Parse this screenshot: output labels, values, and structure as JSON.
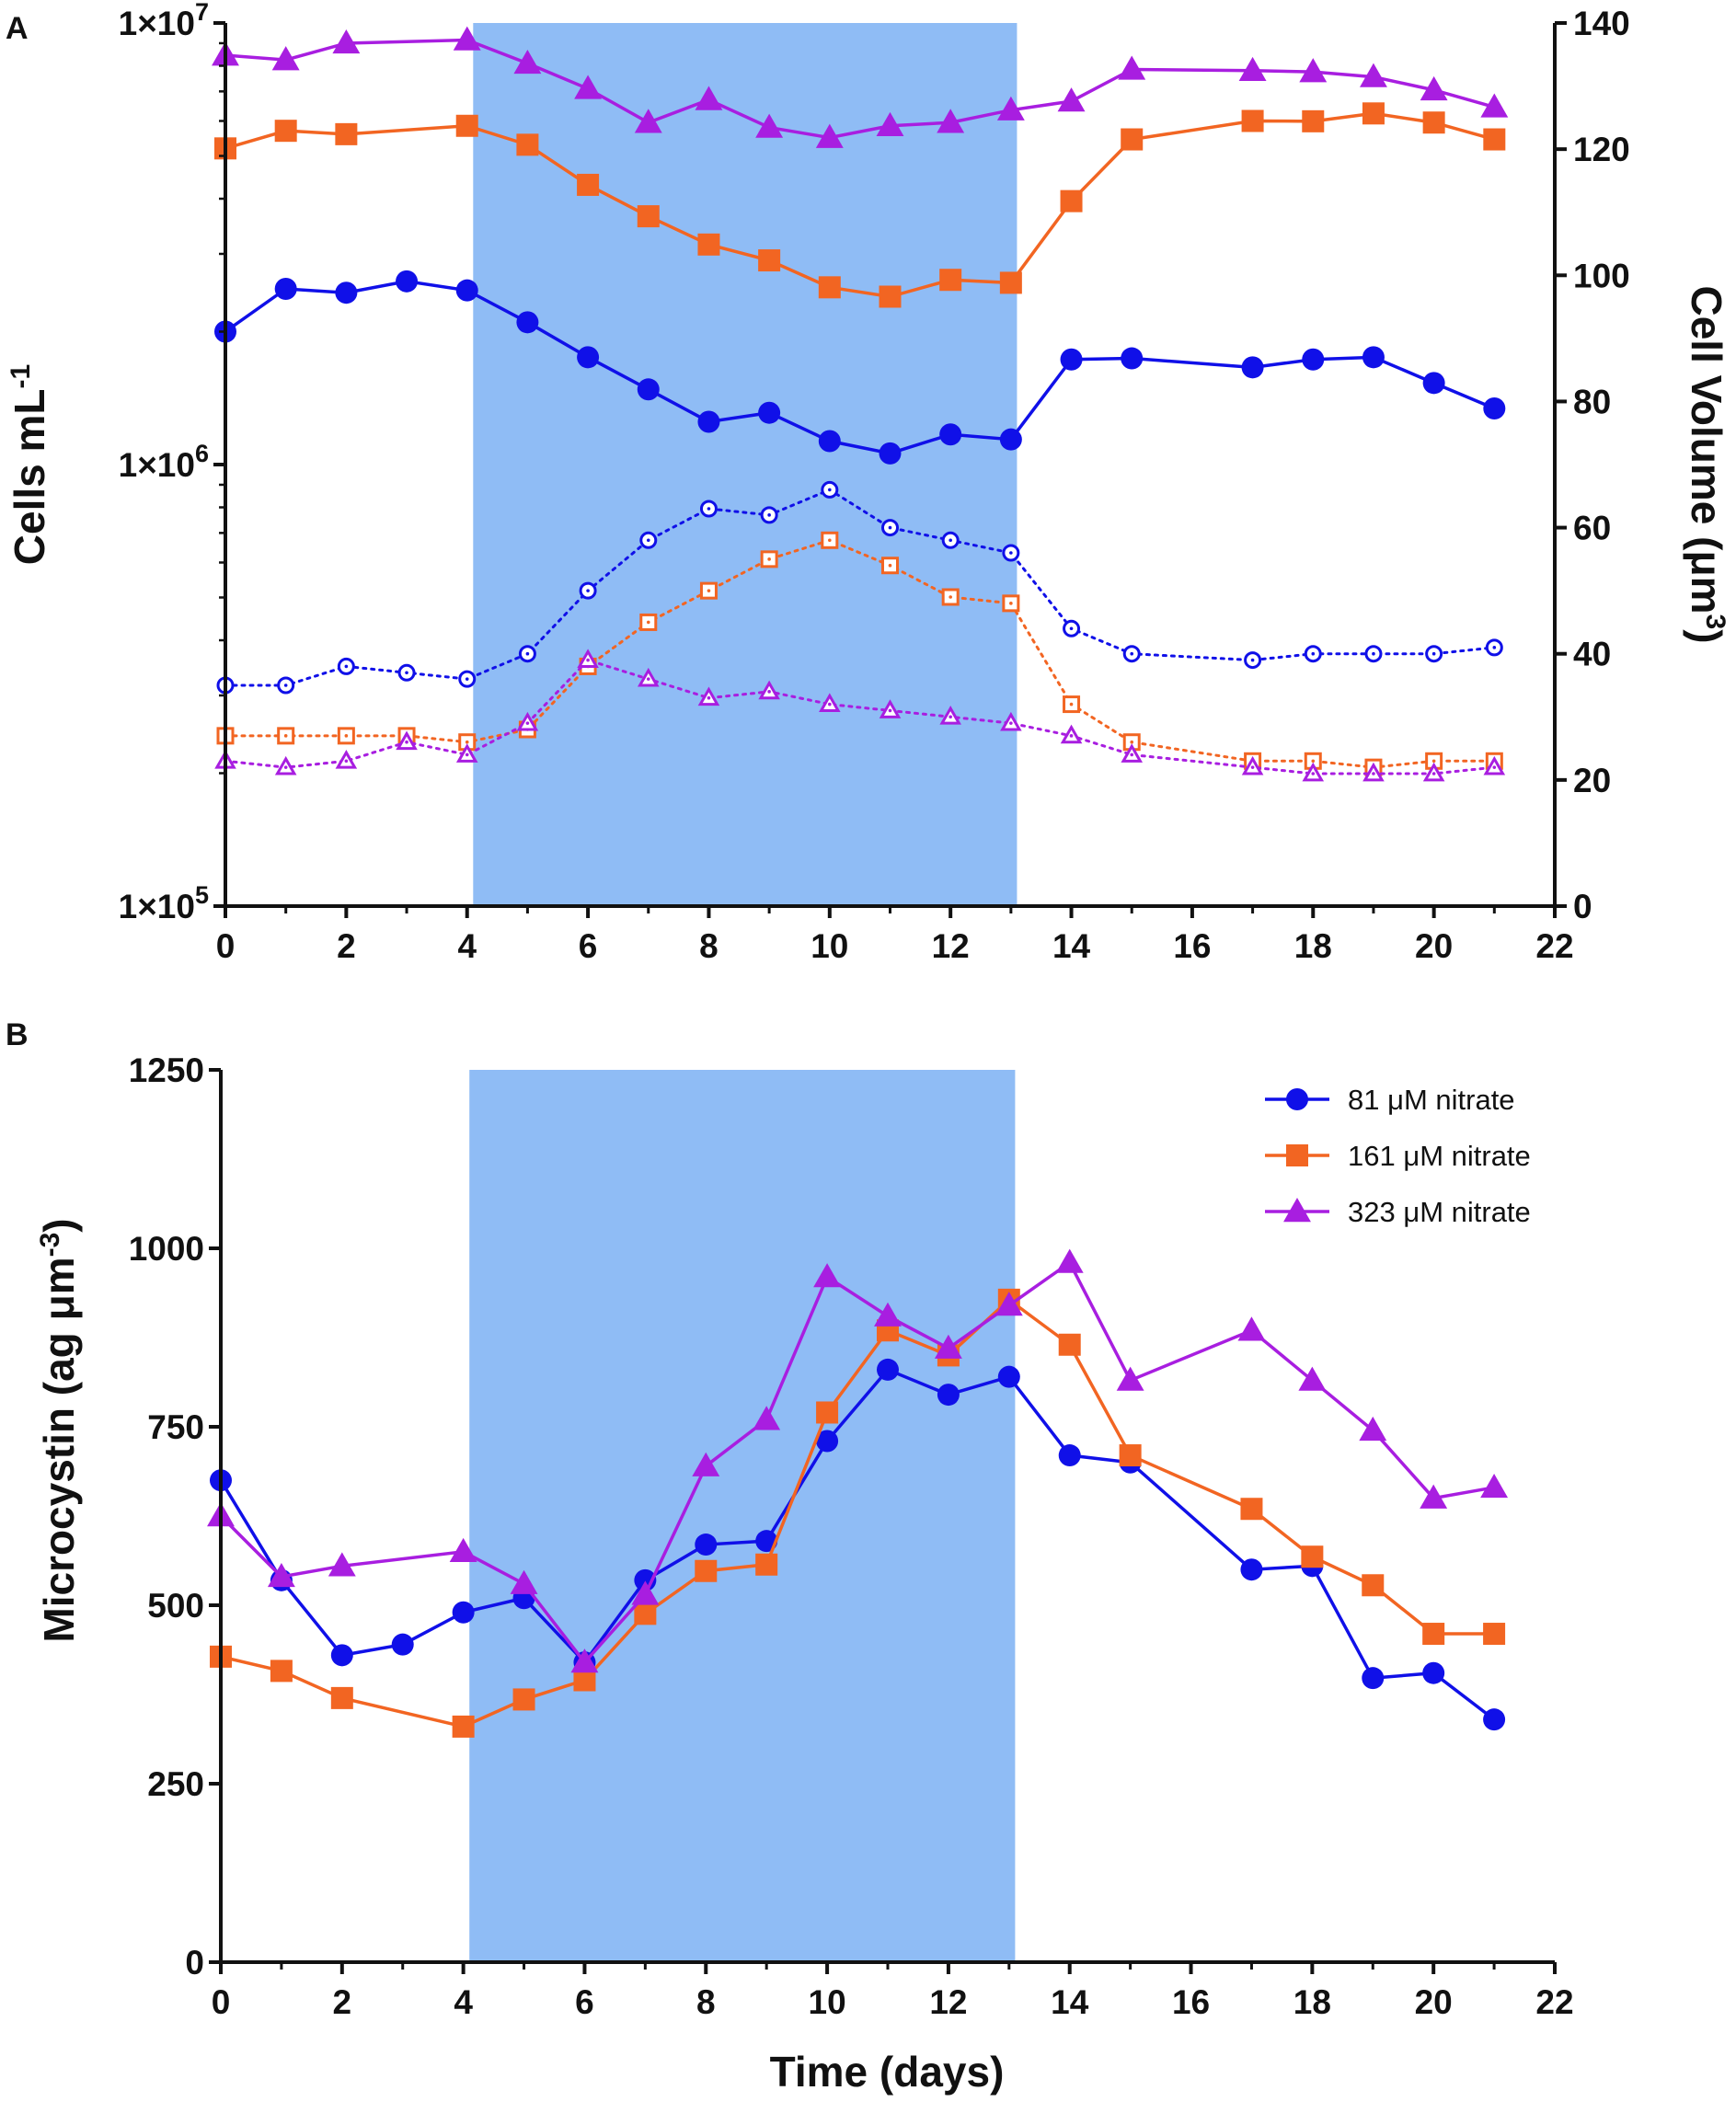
{
  "colors": {
    "series_81": "#1010e8",
    "series_161": "#f26522",
    "series_323": "#a81ee0",
    "shade": "#8fbcf5",
    "axis": "#111111"
  },
  "chart_data": [
    {
      "panel": "A",
      "type": "line",
      "xlabel": "",
      "x_ticks": [
        "0",
        "2",
        "4",
        "6",
        "8",
        "10",
        "12",
        "14",
        "16",
        "18",
        "20",
        "22"
      ],
      "xlim": [
        0,
        22
      ],
      "shaded_region": [
        4.1,
        13.1
      ],
      "left_axis": {
        "ylabel_main": "Cells mL",
        "ylabel_sup": "-1",
        "scale": "log",
        "ylim": [
          100000,
          10000000
        ],
        "ticks": [
          {
            "value": 100000,
            "base": "1×10",
            "exp": "5"
          },
          {
            "value": 1000000,
            "base": "1×10",
            "exp": "6"
          },
          {
            "value": 10000000,
            "base": "1×10",
            "exp": "7"
          }
        ]
      },
      "right_axis": {
        "ylabel_main": "Cell Volume (μm",
        "ylabel_sup": "3",
        "ylabel_end": ")",
        "scale": "linear",
        "ylim": [
          0,
          140
        ],
        "ticks": [
          "0",
          "20",
          "40",
          "60",
          "80",
          "100",
          "120",
          "140"
        ]
      },
      "series": [
        {
          "name": "81 μM nitrate",
          "measure": "cells",
          "axis": "left",
          "color": "series_81",
          "marker": "circle",
          "filled": true,
          "dotted": false,
          "x": [
            0,
            1,
            2,
            3,
            4,
            5,
            6,
            7,
            8,
            9,
            10,
            11,
            12,
            13,
            14,
            15,
            17,
            18,
            19,
            20,
            21
          ],
          "y": [
            2000000,
            2500000,
            2450000,
            2600000,
            2480000,
            2100000,
            1750000,
            1480000,
            1250000,
            1310000,
            1130000,
            1060000,
            1170000,
            1140000,
            1730000,
            1740000,
            1660000,
            1730000,
            1750000,
            1530000,
            1340000
          ]
        },
        {
          "name": "161 μM nitrate",
          "measure": "cells",
          "axis": "left",
          "color": "series_161",
          "marker": "square",
          "filled": true,
          "dotted": false,
          "x": [
            0,
            1,
            2,
            4,
            5,
            6,
            7,
            8,
            9,
            10,
            11,
            12,
            13,
            14,
            15,
            17,
            18,
            19,
            20,
            21
          ],
          "y": [
            5200000,
            5700000,
            5600000,
            5850000,
            5300000,
            4300000,
            3650000,
            3150000,
            2900000,
            2520000,
            2400000,
            2620000,
            2580000,
            3950000,
            5450000,
            6000000,
            5990000,
            6240000,
            5950000,
            5450000
          ]
        },
        {
          "name": "323 μM nitrate",
          "measure": "cells",
          "axis": "left",
          "color": "series_323",
          "marker": "triangle",
          "filled": true,
          "dotted": false,
          "x": [
            0,
            1,
            2,
            4,
            5,
            6,
            7,
            8,
            9,
            10,
            11,
            12,
            13,
            14,
            15,
            17,
            18,
            19,
            20,
            21
          ],
          "y": [
            8450000,
            8250000,
            9000000,
            9150000,
            8100000,
            7100000,
            5950000,
            6700000,
            5800000,
            5500000,
            5850000,
            5950000,
            6350000,
            6650000,
            7850000,
            7800000,
            7750000,
            7550000,
            7050000,
            6450000
          ]
        },
        {
          "name": "81 μM nitrate",
          "measure": "volume",
          "axis": "right",
          "color": "series_81",
          "marker": "circle",
          "filled": false,
          "dotted": true,
          "x": [
            0,
            1,
            2,
            3,
            4,
            5,
            6,
            7,
            8,
            9,
            10,
            11,
            12,
            13,
            14,
            15,
            17,
            18,
            19,
            20,
            21
          ],
          "y": [
            35,
            35,
            38,
            37,
            36,
            40,
            50,
            58,
            63,
            62,
            66,
            60,
            58,
            56,
            44,
            40,
            39,
            40,
            40,
            40,
            41
          ]
        },
        {
          "name": "161 μM nitrate",
          "measure": "volume",
          "axis": "right",
          "color": "series_161",
          "marker": "square",
          "filled": false,
          "dotted": true,
          "x": [
            0,
            1,
            2,
            3,
            4,
            5,
            6,
            7,
            8,
            9,
            10,
            11,
            12,
            13,
            14,
            15,
            17,
            18,
            19,
            20,
            21
          ],
          "y": [
            27,
            27,
            27,
            27,
            26,
            28,
            38,
            45,
            50,
            55,
            58,
            54,
            49,
            48,
            32,
            26,
            23,
            23,
            22,
            23,
            23
          ]
        },
        {
          "name": "323 μM nitrate",
          "measure": "volume",
          "axis": "right",
          "color": "series_323",
          "marker": "triangle",
          "filled": false,
          "dotted": true,
          "x": [
            0,
            1,
            2,
            3,
            4,
            5,
            6,
            7,
            8,
            9,
            10,
            11,
            12,
            13,
            14,
            15,
            17,
            18,
            19,
            20,
            21
          ],
          "y": [
            23,
            22,
            23,
            26,
            24,
            29,
            39,
            36,
            33,
            34,
            32,
            31,
            30,
            29,
            27,
            24,
            22,
            21,
            21,
            21,
            22
          ]
        }
      ]
    },
    {
      "panel": "B",
      "type": "line",
      "xlabel": "Time (days)",
      "x_ticks": [
        "0",
        "2",
        "4",
        "6",
        "8",
        "10",
        "12",
        "14",
        "16",
        "18",
        "20",
        "22"
      ],
      "xlim": [
        0,
        22
      ],
      "shaded_region": [
        4.1,
        13.1
      ],
      "left_axis": {
        "ylabel_main": "Microcystin (ag μm",
        "ylabel_sup": "-3",
        "ylabel_end": ")",
        "scale": "linear",
        "ylim": [
          0,
          1250
        ],
        "ticks": [
          "0",
          "250",
          "500",
          "750",
          "1000",
          "1250"
        ]
      },
      "legend_position": "top-right",
      "legend": [
        "81 μM nitrate",
        "161 μM nitrate",
        "323 μM nitrate"
      ],
      "series": [
        {
          "name": "81 μM nitrate",
          "color": "series_81",
          "marker": "circle",
          "filled": true,
          "x": [
            0,
            1,
            2,
            3,
            4,
            5,
            6,
            7,
            8,
            9,
            10,
            11,
            12,
            13,
            14,
            15,
            17,
            18,
            19,
            20,
            21
          ],
          "y": [
            675,
            535,
            430,
            445,
            490,
            510,
            420,
            535,
            585,
            590,
            730,
            830,
            795,
            820,
            710,
            700,
            550,
            555,
            398,
            405,
            340
          ]
        },
        {
          "name": "161 μM nitrate",
          "color": "series_161",
          "marker": "square",
          "filled": true,
          "x": [
            0,
            1,
            2,
            4,
            5,
            6,
            7,
            8,
            9,
            10,
            11,
            12,
            13,
            14,
            15,
            17,
            18,
            19,
            20,
            21
          ],
          "y": [
            428,
            408,
            370,
            330,
            368,
            395,
            488,
            548,
            557,
            770,
            885,
            850,
            928,
            865,
            710,
            635,
            568,
            528,
            460,
            460
          ]
        },
        {
          "name": "323 μM nitrate",
          "color": "series_323",
          "marker": "triangle",
          "filled": true,
          "x": [
            0,
            1,
            2,
            4,
            5,
            6,
            7,
            8,
            9,
            10,
            11,
            12,
            13,
            14,
            15,
            17,
            18,
            19,
            20,
            21
          ],
          "y": [
            625,
            540,
            555,
            575,
            530,
            420,
            515,
            695,
            760,
            960,
            905,
            860,
            920,
            980,
            815,
            885,
            815,
            745,
            650,
            665
          ]
        }
      ]
    }
  ]
}
